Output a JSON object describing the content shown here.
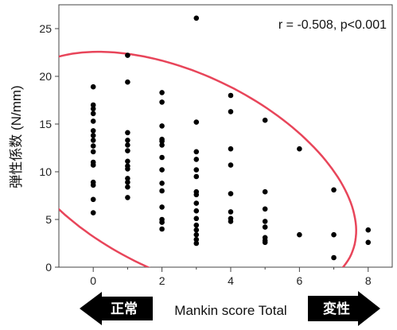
{
  "chart_data": {
    "type": "scatter",
    "xlabel": "Mankin score Total",
    "ylabel": "弾性係数 (N/mm)",
    "annotation": "r = -0.508, p<0.001",
    "xlim": [
      -1.0,
      8.7
    ],
    "ylim": [
      0,
      27.5
    ],
    "x_ticks": [
      0,
      2,
      4,
      6,
      8
    ],
    "x_minor_ticks": [
      1,
      3,
      5,
      7
    ],
    "y_ticks": [
      0,
      5,
      10,
      15,
      20,
      25
    ],
    "grid": false,
    "point_color": "#000000",
    "ellipse_color": "#e8455a",
    "arrow_color": "#000000",
    "left_arrow_label": "正常",
    "right_arrow_label": "変性",
    "points": [
      {
        "x": 0,
        "y": 18.9
      },
      {
        "x": 0,
        "y": 17.0
      },
      {
        "x": 0,
        "y": 16.6
      },
      {
        "x": 0,
        "y": 16.1
      },
      {
        "x": 0,
        "y": 15.3
      },
      {
        "x": 0,
        "y": 14.3
      },
      {
        "x": 0,
        "y": 13.8
      },
      {
        "x": 0,
        "y": 13.3
      },
      {
        "x": 0,
        "y": 12.7
      },
      {
        "x": 0,
        "y": 12.1
      },
      {
        "x": 0,
        "y": 11.0
      },
      {
        "x": 0,
        "y": 10.7
      },
      {
        "x": 0,
        "y": 8.9
      },
      {
        "x": 0,
        "y": 8.6
      },
      {
        "x": 0,
        "y": 7.1
      },
      {
        "x": 0,
        "y": 5.7
      },
      {
        "x": 1,
        "y": 22.2
      },
      {
        "x": 1,
        "y": 19.4
      },
      {
        "x": 1,
        "y": 14.1
      },
      {
        "x": 1,
        "y": 13.3
      },
      {
        "x": 1,
        "y": 12.8
      },
      {
        "x": 1,
        "y": 12.2
      },
      {
        "x": 1,
        "y": 11.1
      },
      {
        "x": 1,
        "y": 10.6
      },
      {
        "x": 1,
        "y": 10.3
      },
      {
        "x": 1,
        "y": 9.3
      },
      {
        "x": 1,
        "y": 8.9
      },
      {
        "x": 1,
        "y": 8.4
      },
      {
        "x": 1,
        "y": 7.3
      },
      {
        "x": 2,
        "y": 18.3
      },
      {
        "x": 2,
        "y": 17.3
      },
      {
        "x": 2,
        "y": 14.8
      },
      {
        "x": 2,
        "y": 13.4
      },
      {
        "x": 2,
        "y": 13.2
      },
      {
        "x": 2,
        "y": 12.8
      },
      {
        "x": 2,
        "y": 11.5
      },
      {
        "x": 2,
        "y": 10.2
      },
      {
        "x": 2,
        "y": 8.8
      },
      {
        "x": 2,
        "y": 8.0
      },
      {
        "x": 2,
        "y": 6.3
      },
      {
        "x": 2,
        "y": 5.0
      },
      {
        "x": 2,
        "y": 4.7
      },
      {
        "x": 2,
        "y": 4.0
      },
      {
        "x": 3,
        "y": 26.1
      },
      {
        "x": 3,
        "y": 15.2
      },
      {
        "x": 3,
        "y": 12.1
      },
      {
        "x": 3,
        "y": 11.3
      },
      {
        "x": 3,
        "y": 10.2
      },
      {
        "x": 3,
        "y": 9.5
      },
      {
        "x": 3,
        "y": 7.9
      },
      {
        "x": 3,
        "y": 7.6
      },
      {
        "x": 3,
        "y": 6.7
      },
      {
        "x": 3,
        "y": 5.9
      },
      {
        "x": 3,
        "y": 5.1
      },
      {
        "x": 3,
        "y": 4.4
      },
      {
        "x": 3,
        "y": 3.9
      },
      {
        "x": 3,
        "y": 3.4
      },
      {
        "x": 3,
        "y": 2.9
      },
      {
        "x": 3,
        "y": 2.5
      },
      {
        "x": 4,
        "y": 18.0
      },
      {
        "x": 4,
        "y": 16.3
      },
      {
        "x": 4,
        "y": 12.4
      },
      {
        "x": 4,
        "y": 10.7
      },
      {
        "x": 4,
        "y": 7.7
      },
      {
        "x": 4,
        "y": 5.8
      },
      {
        "x": 4,
        "y": 5.1
      },
      {
        "x": 4,
        "y": 4.8
      },
      {
        "x": 5,
        "y": 15.4
      },
      {
        "x": 5,
        "y": 7.9
      },
      {
        "x": 5,
        "y": 6.1
      },
      {
        "x": 5,
        "y": 4.8
      },
      {
        "x": 5,
        "y": 4.2
      },
      {
        "x": 5,
        "y": 3.1
      },
      {
        "x": 5,
        "y": 2.8
      },
      {
        "x": 5,
        "y": 2.6
      },
      {
        "x": 6,
        "y": 12.4
      },
      {
        "x": 6,
        "y": 3.4
      },
      {
        "x": 7,
        "y": 8.1
      },
      {
        "x": 7,
        "y": 3.4
      },
      {
        "x": 7,
        "y": 1.0
      },
      {
        "x": 8,
        "y": 3.9
      },
      {
        "x": 8,
        "y": 2.6
      }
    ]
  }
}
